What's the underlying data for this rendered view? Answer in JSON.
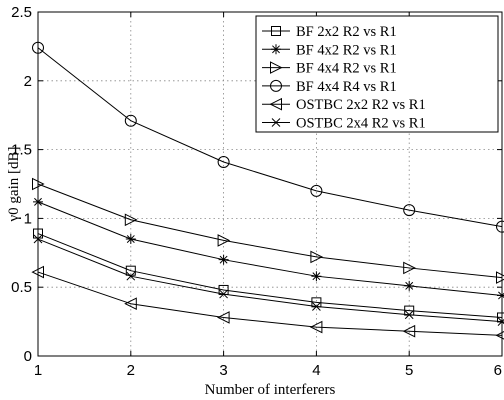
{
  "chart_data": {
    "type": "line",
    "xlabel": "Number of interferers",
    "ylabel": "γ0 gain [dB]",
    "xlim": [
      1,
      6
    ],
    "ylim": [
      0,
      2.5
    ],
    "x_ticks": [
      "1",
      "2",
      "3",
      "4",
      "5",
      "6"
    ],
    "y_ticks": [
      "0",
      "0.5",
      "1",
      "1.5",
      "2",
      "2.5"
    ],
    "grid": true,
    "legend_position": "top-right",
    "x": [
      1,
      2,
      3,
      4,
      5,
      6
    ],
    "series": [
      {
        "name": "BF 2x2 R2 vs R1",
        "marker": "square",
        "values": [
          0.89,
          0.62,
          0.48,
          0.39,
          0.33,
          0.28
        ]
      },
      {
        "name": "BF 4x2 R2 vs R1",
        "marker": "star",
        "values": [
          1.12,
          0.85,
          0.7,
          0.58,
          0.51,
          0.44
        ]
      },
      {
        "name": "BF 4x4 R2 vs R1",
        "marker": "triangle-right",
        "values": [
          1.25,
          0.99,
          0.84,
          0.72,
          0.64,
          0.57
        ]
      },
      {
        "name": "BF 4x4 R4 vs R1",
        "marker": "circle",
        "values": [
          2.24,
          1.71,
          1.41,
          1.2,
          1.06,
          0.94
        ]
      },
      {
        "name": "OSTBC 2x2 R2 vs R1",
        "marker": "triangle-left",
        "values": [
          0.61,
          0.38,
          0.28,
          0.21,
          0.18,
          0.15
        ]
      },
      {
        "name": "OSTBC 2x4 R2 vs R1",
        "marker": "x",
        "values": [
          0.85,
          0.58,
          0.45,
          0.36,
          0.3,
          0.25
        ]
      }
    ]
  }
}
